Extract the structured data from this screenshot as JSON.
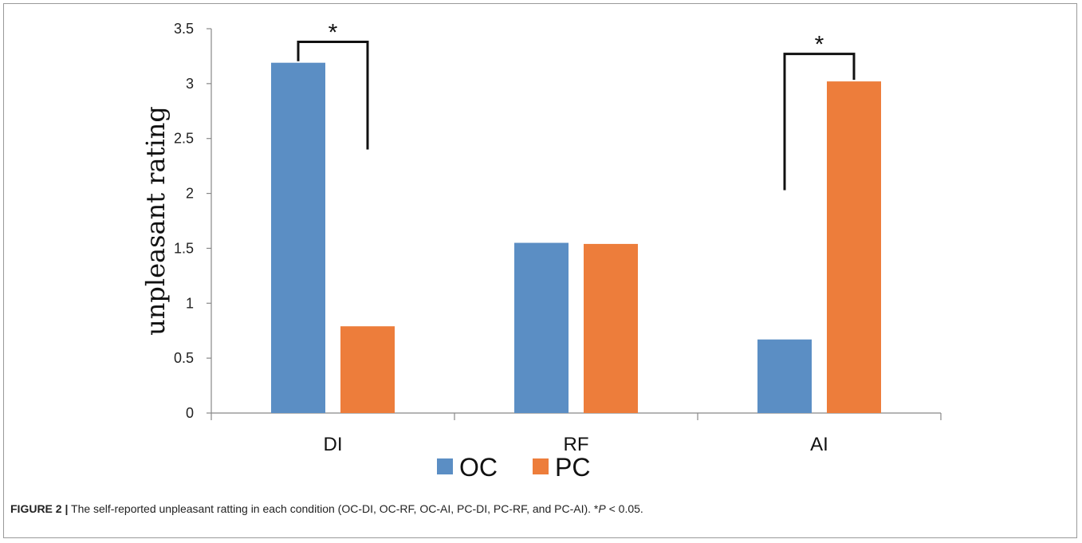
{
  "chart_data": {
    "type": "bar",
    "categories": [
      "DI",
      "RF",
      "AI"
    ],
    "series": [
      {
        "name": "OC",
        "values": [
          3.19,
          1.55,
          0.67
        ],
        "color": "#5b8ec4"
      },
      {
        "name": "PC",
        "values": [
          0.79,
          1.54,
          3.02
        ],
        "color": "#ed7d3b"
      }
    ],
    "ylabel": "unpleasant rating",
    "ylim": [
      0,
      3.5
    ],
    "yticks": [
      "0",
      "0.5",
      "1",
      "1.5",
      "2",
      "2.5",
      "3",
      "3.5"
    ],
    "grid": false,
    "legend_position": "bottom",
    "annotations": [
      {
        "text": "*",
        "category": "DI",
        "meaning": "significance bracket between OC and PC"
      },
      {
        "text": "*",
        "category": "AI",
        "meaning": "significance bracket between OC and PC"
      }
    ]
  },
  "caption": {
    "label": "FIGURE 2 |",
    "text": " The self-reported unpleasant ratting in each condition (OC-DI, OC-RF, OC-AI, PC-DI, PC-RF, and PC-AI). *",
    "p_symbol": "P",
    "p_rest": " < 0.05."
  }
}
